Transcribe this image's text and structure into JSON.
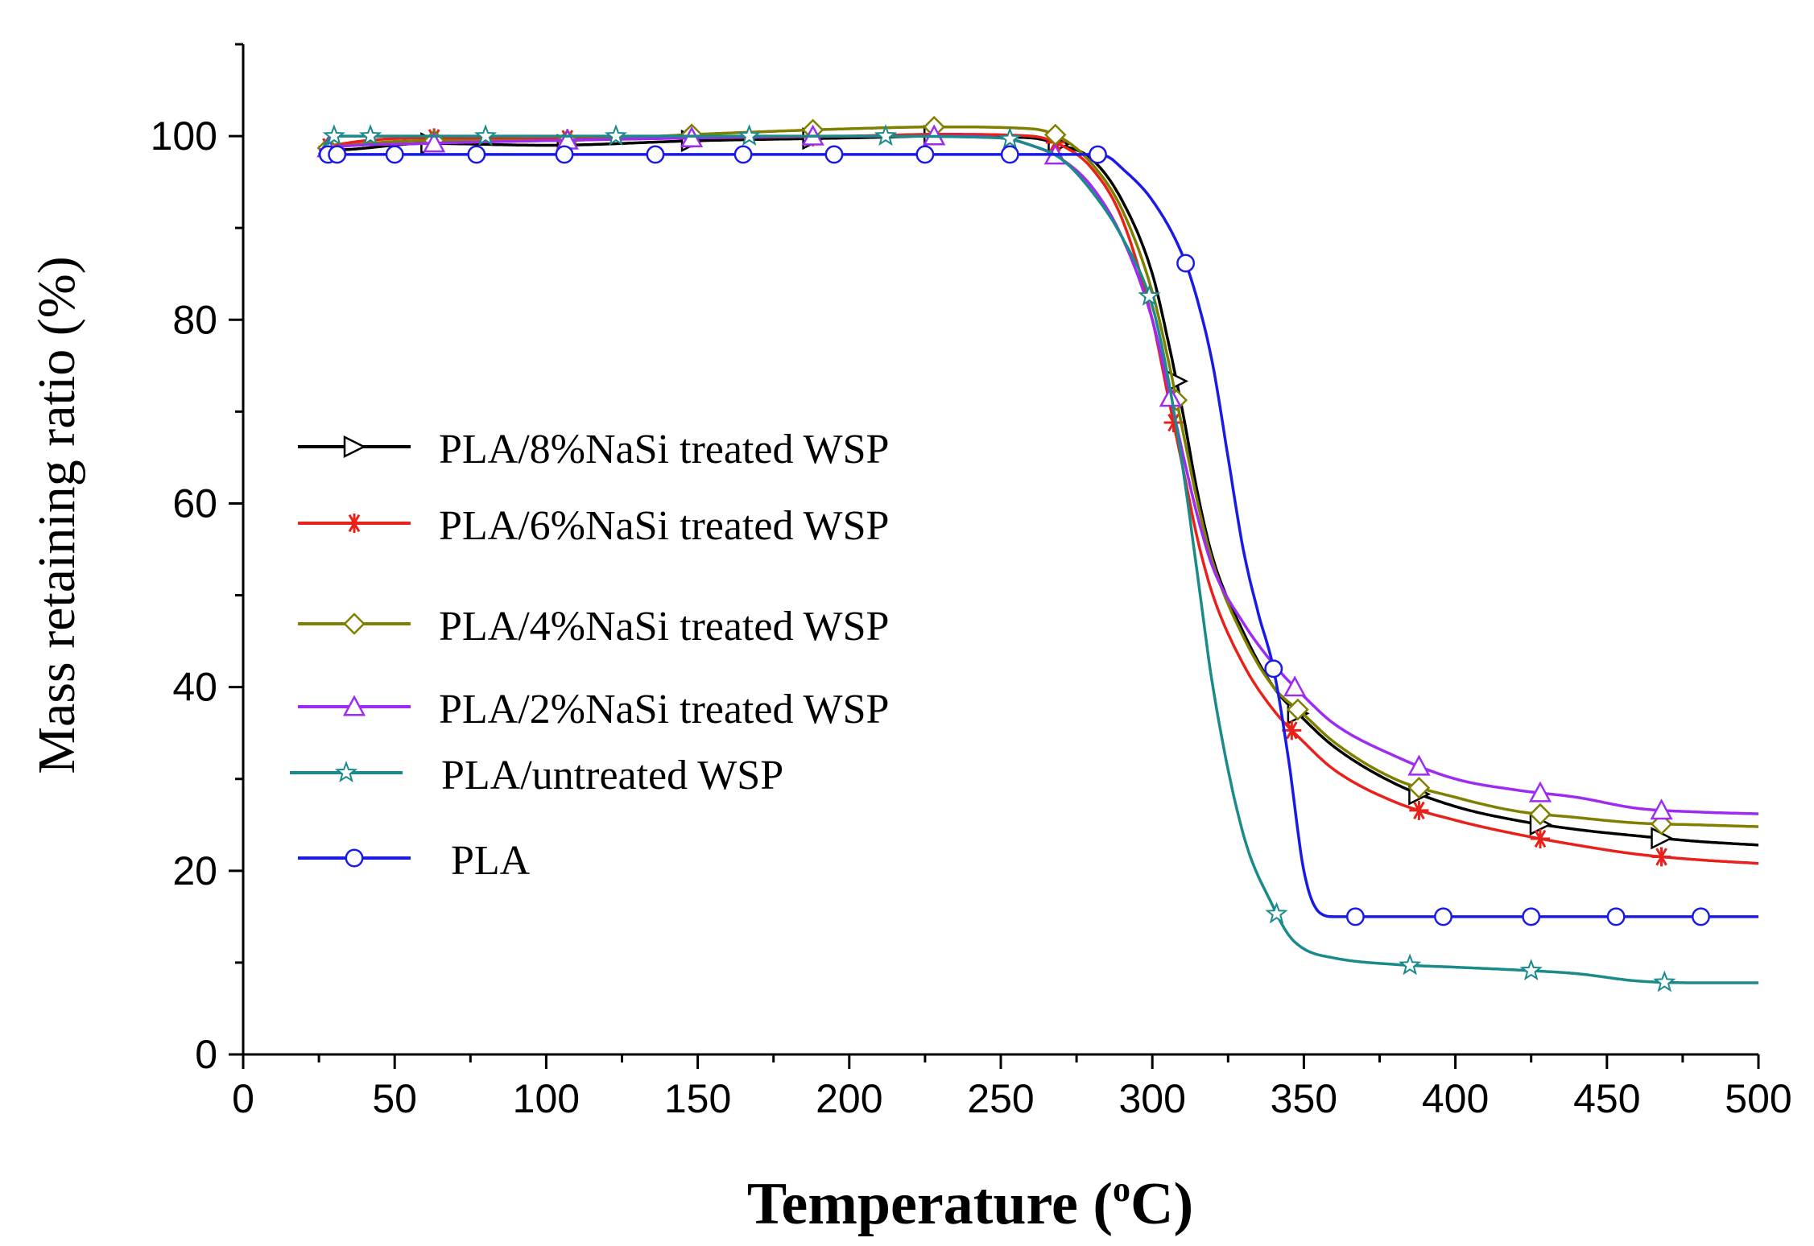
{
  "chart_data": {
    "type": "line",
    "title": "",
    "xlabel_main": "Temperature (",
    "xlabel_sup": "o",
    "xlabel_tail": "C)",
    "ylabel": "Mass retaining ratio (%)",
    "xlim": [
      0,
      500
    ],
    "ylim": [
      0,
      110
    ],
    "xticks": [
      0,
      50,
      100,
      150,
      200,
      250,
      300,
      350,
      400,
      450,
      500
    ],
    "yticks": [
      0,
      20,
      40,
      60,
      80,
      100
    ],
    "grid": false,
    "legend_position": "left-middle",
    "series": [
      {
        "name": "PLA/8%NaSi treated WSP",
        "color": "#000000",
        "marker": "triangle-right",
        "x": [
          25,
          30,
          60,
          100,
          150,
          200,
          230,
          260,
          270,
          280,
          290,
          300,
          305,
          310,
          315,
          320,
          330,
          340,
          350,
          360,
          380,
          400,
          420,
          440,
          460,
          480,
          500
        ],
        "y": [
          98.5,
          98.5,
          99.2,
          99.0,
          99.5,
          99.8,
          100.0,
          99.8,
          99.0,
          97.5,
          93.0,
          85.0,
          78.0,
          70.0,
          61.0,
          54.0,
          46.0,
          40.0,
          36.5,
          33.5,
          29.5,
          27.0,
          25.5,
          24.5,
          23.8,
          23.2,
          22.8
        ],
        "marker_x": [
          30,
          62,
          107,
          148,
          188,
          228,
          269,
          308,
          348,
          388,
          428,
          468
        ]
      },
      {
        "name": "PLA/6%NaSi treated WSP",
        "color": "#e8211b",
        "marker": "asterisk",
        "x": [
          25,
          30,
          60,
          100,
          150,
          200,
          230,
          260,
          270,
          280,
          290,
          300,
          305,
          310,
          315,
          320,
          330,
          340,
          350,
          360,
          380,
          400,
          420,
          440,
          460,
          480,
          500
        ],
        "y": [
          98.5,
          99.0,
          99.8,
          99.7,
          99.8,
          100.0,
          100.2,
          100.0,
          99.0,
          96.5,
          91.0,
          80.0,
          72.0,
          64.0,
          56.0,
          50.0,
          42.5,
          37.5,
          34.0,
          31.0,
          27.5,
          25.5,
          24.0,
          22.8,
          21.8,
          21.2,
          20.8
        ],
        "marker_x": [
          28,
          63,
          107,
          148,
          188,
          228,
          268,
          307,
          346,
          388,
          428,
          468
        ]
      },
      {
        "name": "PLA/4%NaSi treated WSP",
        "color": "#808000",
        "marker": "diamond",
        "x": [
          25,
          30,
          60,
          100,
          150,
          200,
          230,
          260,
          270,
          280,
          290,
          300,
          305,
          310,
          315,
          320,
          330,
          340,
          350,
          360,
          380,
          400,
          420,
          440,
          460,
          480,
          500
        ],
        "y": [
          98.5,
          98.8,
          99.5,
          99.5,
          100.2,
          100.8,
          101.0,
          100.8,
          99.8,
          97.0,
          92.0,
          83.0,
          76.0,
          68.0,
          60.0,
          53.5,
          45.5,
          40.0,
          37.0,
          34.0,
          30.0,
          28.0,
          26.5,
          25.8,
          25.2,
          25.0,
          24.8
        ],
        "marker_x": [
          28,
          63,
          107,
          148,
          188,
          228,
          268,
          308,
          348,
          388,
          428,
          468
        ]
      },
      {
        "name": "PLA/2%NaSi treated WSP",
        "color": "#9d2bf0",
        "marker": "triangle-up",
        "x": [
          25,
          30,
          60,
          100,
          150,
          200,
          230,
          250,
          260,
          270,
          280,
          290,
          300,
          305,
          310,
          315,
          320,
          330,
          340,
          350,
          360,
          380,
          400,
          420,
          440,
          460,
          480,
          500
        ],
        "y": [
          98.5,
          98.8,
          99.2,
          99.5,
          99.8,
          100.0,
          100.0,
          99.8,
          99.0,
          97.5,
          94.5,
          89.0,
          80.0,
          73.0,
          65.5,
          58.5,
          53.0,
          47.0,
          42.5,
          39.0,
          36.0,
          32.5,
          30.0,
          28.8,
          28.0,
          26.8,
          26.4,
          26.2
        ],
        "marker_x": [
          28,
          63,
          107,
          148,
          188,
          228,
          268,
          306,
          347,
          388,
          428,
          468
        ]
      },
      {
        "name": "PLA/untreated WSP",
        "color": "#1a8a8a",
        "marker": "star",
        "x": [
          25,
          30,
          50,
          100,
          150,
          200,
          250,
          260,
          270,
          280,
          290,
          300,
          305,
          310,
          315,
          320,
          330,
          340,
          345,
          350,
          360,
          380,
          400,
          420,
          440,
          460,
          480,
          500
        ],
        "y": [
          98.0,
          100.0,
          100.0,
          100.0,
          100.0,
          100.0,
          99.8,
          99.0,
          97.5,
          94.0,
          89.0,
          81.5,
          74.0,
          64.0,
          52.0,
          40.0,
          24.0,
          16.0,
          13.0,
          11.5,
          10.5,
          9.8,
          9.5,
          9.2,
          8.8,
          8.0,
          7.8,
          7.8
        ],
        "marker_x": [
          30,
          42,
          80,
          123,
          167,
          212,
          253,
          299,
          341,
          385,
          425,
          469
        ]
      },
      {
        "name": "PLA",
        "color": "#1a1ae6",
        "marker": "circle",
        "x": [
          25,
          30,
          50,
          100,
          150,
          200,
          250,
          270,
          280,
          285,
          290,
          300,
          310,
          315,
          320,
          325,
          330,
          335,
          340,
          345,
          350,
          355,
          360,
          380,
          400,
          450,
          500
        ],
        "y": [
          98.0,
          98.0,
          98.0,
          98.0,
          98.0,
          98.0,
          98.0,
          98.0,
          98.0,
          97.8,
          96.5,
          93.0,
          87.0,
          82.0,
          75.0,
          65.0,
          55.0,
          48.0,
          42.0,
          32.0,
          20.0,
          15.5,
          15.0,
          15.0,
          15.0,
          15.0,
          15.0
        ],
        "marker_x": [
          28,
          31,
          50,
          77,
          106,
          136,
          165,
          195,
          225,
          253,
          282,
          311,
          340,
          367,
          396,
          425,
          453,
          481
        ]
      }
    ]
  }
}
